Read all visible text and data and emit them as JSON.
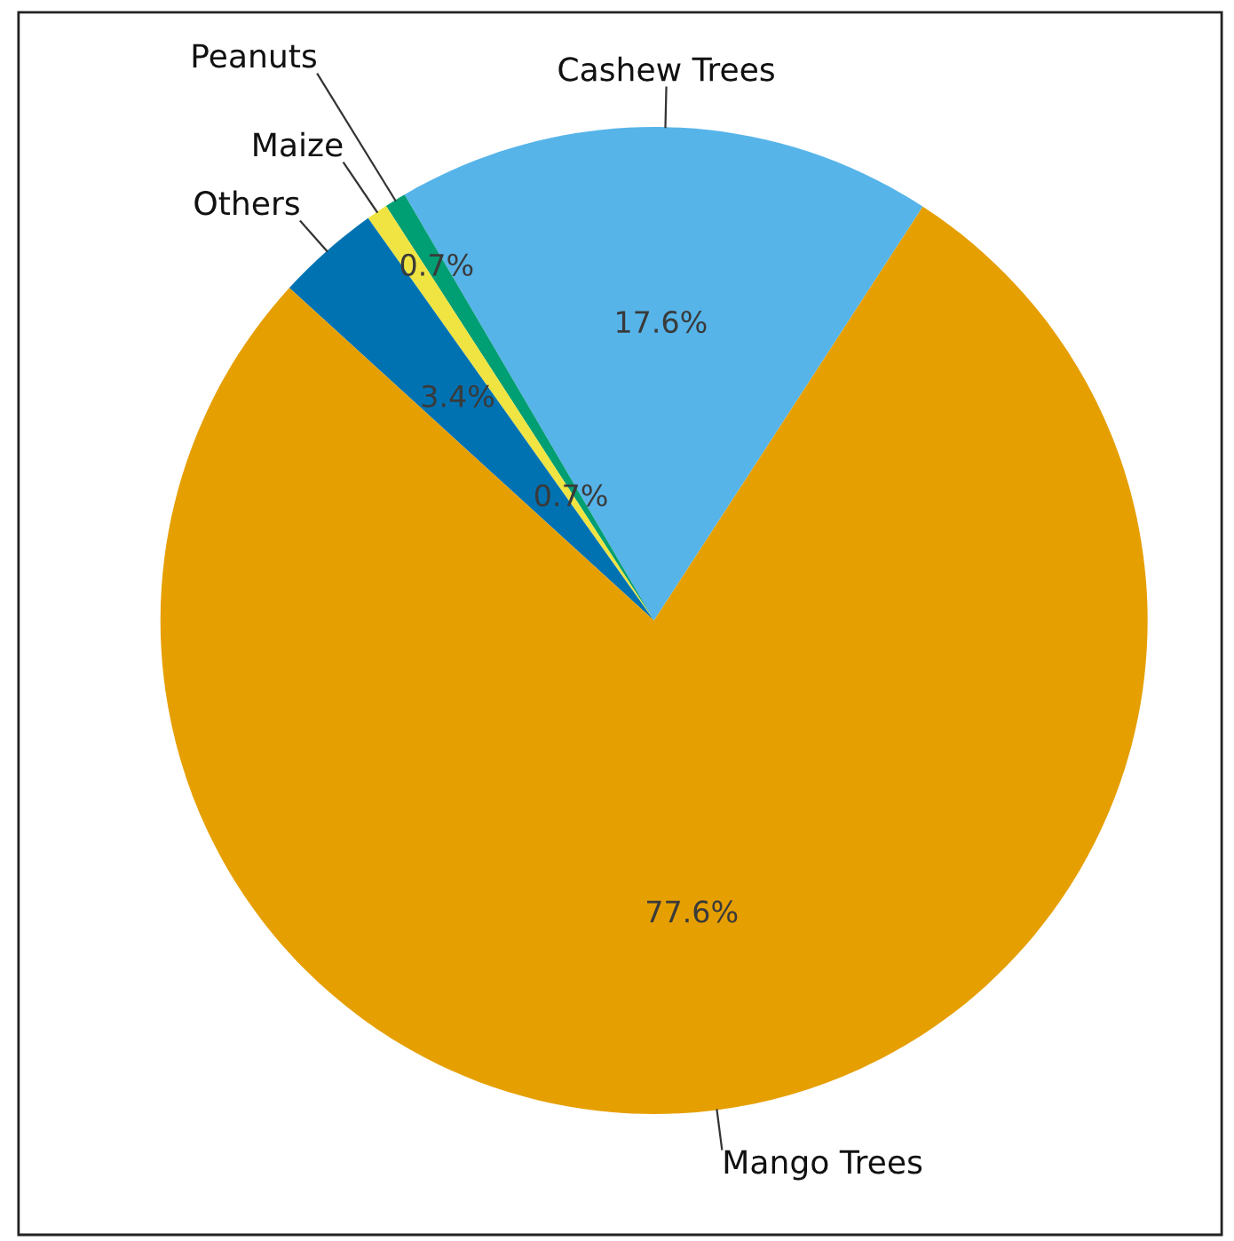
{
  "chart_data": {
    "type": "pie",
    "categories": [
      "Cashew Trees",
      "Peanuts",
      "Maize",
      "Others",
      "Mango Trees"
    ],
    "values": [
      17.6,
      0.7,
      0.7,
      3.4,
      77.6
    ],
    "colors": [
      "#56b4e9",
      "#009e73",
      "#f0e442",
      "#0072b2",
      "#e69f00"
    ],
    "value_labels": [
      "17.6%",
      "0.7%",
      "0.7%",
      "3.4%",
      "77.6%"
    ]
  }
}
